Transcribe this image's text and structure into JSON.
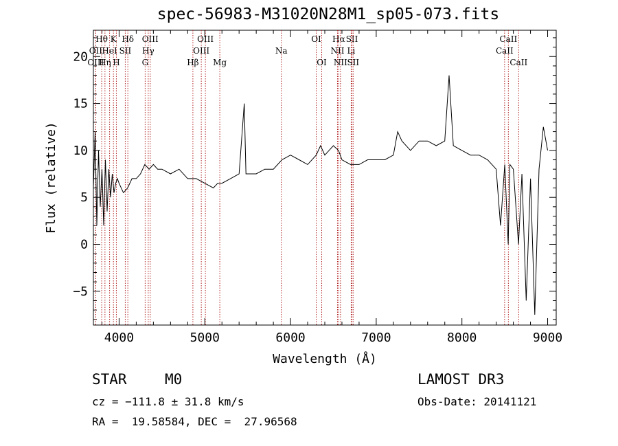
{
  "title": "spec-56983-M31020N28M1_sp05-073.fits",
  "info": {
    "class": "STAR",
    "subclass": "M0",
    "survey": "LAMOST DR3",
    "cz": "cz = −111.8 ± 31.8 km/s",
    "obs_date": "Obs-Date: 20141121",
    "coords": "RA =  19.58584, DEC =  27.96568"
  },
  "chart_data": {
    "type": "line",
    "title": "spec-56983-M31020N28M1_sp05-073.fits",
    "xlabel": "Wavelength (Å)",
    "ylabel": "Flux (relative)",
    "xlim": [
      3700,
      9100
    ],
    "ylim": [
      -8.6,
      22.8
    ],
    "xticks": [
      4000,
      5000,
      6000,
      7000,
      8000,
      9000
    ],
    "yticks": [
      -5,
      0,
      5,
      10,
      15,
      20
    ],
    "grid": false,
    "line_color": "#000000",
    "marker_color": "#b22222",
    "series": [
      {
        "x": [
          3700,
          3720,
          3740,
          3760,
          3780,
          3800,
          3820,
          3840,
          3860,
          3880,
          3900,
          3920,
          3940,
          3960,
          3980,
          4000,
          4050,
          4100,
          4150,
          4200,
          4250,
          4300,
          4350,
          4400,
          4450,
          4500,
          4600,
          4700,
          4800,
          4900,
          5000,
          5100,
          5150,
          5200,
          5300,
          5400,
          5460,
          5480,
          5500,
          5600,
          5700,
          5800,
          5900,
          6000,
          6100,
          6200,
          6300,
          6350,
          6400,
          6450,
          6500,
          6560,
          6600,
          6700,
          6800,
          6900,
          7000,
          7100,
          7200,
          7250,
          7300,
          7400,
          7500,
          7600,
          7700,
          7800,
          7850,
          7900,
          8000,
          8100,
          8200,
          8300,
          8400,
          8450,
          8500,
          8540,
          8560,
          8600,
          8660,
          8700,
          8750,
          8800,
          8850,
          8900,
          8950,
          9000
        ],
        "y": [
          6.0,
          12.0,
          2.0,
          10.0,
          4.0,
          8.0,
          2.0,
          9.0,
          3.5,
          8.0,
          5.0,
          7.5,
          5.5,
          6.5,
          7.0,
          6.5,
          5.5,
          6.0,
          7.0,
          7.0,
          7.5,
          8.5,
          8.0,
          8.5,
          8.0,
          8.0,
          7.5,
          8.0,
          7.0,
          7.0,
          6.5,
          6.0,
          6.5,
          6.5,
          7.0,
          7.5,
          15.0,
          7.5,
          7.5,
          7.5,
          8.0,
          8.0,
          9.0,
          9.5,
          9.0,
          8.5,
          9.5,
          10.5,
          9.5,
          10.0,
          10.5,
          10.0,
          9.0,
          8.5,
          8.5,
          9.0,
          9.0,
          9.0,
          9.5,
          12.0,
          11.0,
          10.0,
          11.0,
          11.0,
          10.5,
          11.0,
          18.0,
          10.5,
          10.0,
          9.5,
          9.5,
          9.0,
          8.0,
          2.0,
          8.5,
          0.0,
          8.5,
          8.0,
          0.0,
          7.5,
          -6.0,
          7.0,
          -7.5,
          8.0,
          12.5,
          10.0
        ]
      }
    ],
    "line_markers": [
      {
        "label": "Hθ",
        "x": 3797,
        "row": 0
      },
      {
        "label": "K",
        "x": 3934,
        "row": 0
      },
      {
        "label": "Hδ",
        "x": 4102,
        "row": 0
      },
      {
        "label": "OIII",
        "x": 4363,
        "row": 0
      },
      {
        "label": "OIII",
        "x": 5007,
        "row": 0
      },
      {
        "label": "OI",
        "x": 6300,
        "row": 0
      },
      {
        "label": "Hα",
        "x": 6563,
        "row": 0
      },
      {
        "label": "SII",
        "x": 6717,
        "row": 0
      },
      {
        "label": "CaII",
        "x": 8542,
        "row": 0
      },
      {
        "label": "OII",
        "x": 3727,
        "row": 1
      },
      {
        "label": "HeI",
        "x": 3889,
        "row": 1
      },
      {
        "label": "SII",
        "x": 4072,
        "row": 1
      },
      {
        "label": "Hγ",
        "x": 4340,
        "row": 1
      },
      {
        "label": "OIII",
        "x": 4959,
        "row": 1
      },
      {
        "label": "Na",
        "x": 5893,
        "row": 1
      },
      {
        "label": "NII",
        "x": 6548,
        "row": 1
      },
      {
        "label": "Li",
        "x": 6708,
        "row": 1
      },
      {
        "label": "CaII",
        "x": 8498,
        "row": 1
      },
      {
        "label": "OIII",
        "x": 3727,
        "row": 2
      },
      {
        "label": "Hη",
        "x": 3835,
        "row": 2
      },
      {
        "label": "H",
        "x": 3968,
        "row": 2
      },
      {
        "label": "G",
        "x": 4304,
        "row": 2
      },
      {
        "label": "Hβ",
        "x": 4861,
        "row": 2
      },
      {
        "label": "Mg",
        "x": 5175,
        "row": 2
      },
      {
        "label": "OI",
        "x": 6364,
        "row": 2
      },
      {
        "label": "NII",
        "x": 6583,
        "row": 2
      },
      {
        "label": "SII",
        "x": 6731,
        "row": 2
      },
      {
        "label": "CaII",
        "x": 8662,
        "row": 2
      }
    ]
  }
}
